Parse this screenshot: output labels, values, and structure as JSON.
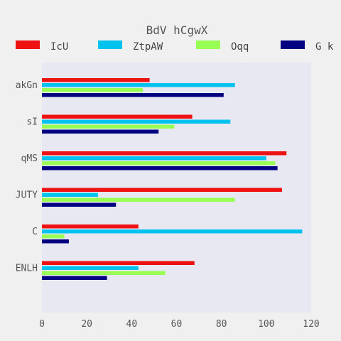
{
  "chart_data": {
    "type": "bar",
    "orientation": "horizontal",
    "title": "BdV hCgwX",
    "xlabel": "",
    "ylabel": "",
    "xlim": [
      0,
      120
    ],
    "xticks": [
      0,
      20,
      40,
      60,
      80,
      100,
      120
    ],
    "categories": [
      "akGn",
      "sI",
      "qMS",
      "JUTY",
      "C",
      "ENLH"
    ],
    "legend_position": "top",
    "series": [
      {
        "name": "IcU",
        "color": "#ee1111",
        "values": [
          48,
          67,
          109,
          107,
          43,
          68
        ]
      },
      {
        "name": "ZtpAW",
        "color": "#00c2ee",
        "values": [
          86,
          84,
          100,
          25,
          116,
          43
        ]
      },
      {
        "name": "Oqq",
        "color": "#99ff55",
        "values": [
          45,
          59,
          104,
          86,
          10,
          55
        ]
      },
      {
        "name": "G k",
        "color": "#000080",
        "values": [
          81,
          52,
          105,
          33,
          12,
          29
        ]
      }
    ]
  }
}
